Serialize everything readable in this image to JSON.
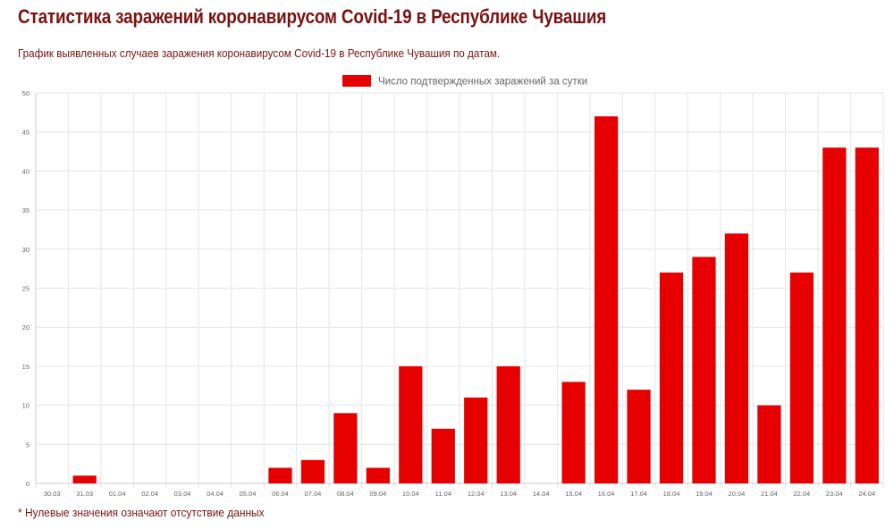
{
  "page": {
    "title": "Статистика заражений коронавирусом Covid-19 в Республике Чувашия",
    "subtitle": "График выявленных случаев заражения коронавирусом Covid-19 в Республике Чувашия по датам.",
    "footnote": "* Нулевые значения означают отсутствие данных"
  },
  "colors": {
    "bar": "#e60000",
    "title": "#7a1212",
    "grid": "#e6e6e6",
    "axis_text": "#666666"
  },
  "chart_data": {
    "type": "bar",
    "title": "",
    "xlabel": "",
    "ylabel": "",
    "ylim": [
      0,
      50
    ],
    "yticks": [
      0,
      5,
      10,
      15,
      20,
      25,
      30,
      35,
      40,
      45,
      50
    ],
    "grid": true,
    "legend_position": "top-center",
    "categories": [
      "30.03",
      "31.03",
      "01.04",
      "02.04",
      "03.04",
      "04.04",
      "05.04",
      "06.04",
      "07.04",
      "08.04",
      "09.04",
      "10.04",
      "11.04",
      "12.04",
      "13.04",
      "14.04",
      "15.04",
      "16.04",
      "17.04",
      "18.04",
      "19.04",
      "20.04",
      "21.04",
      "22.04",
      "23.04",
      "24.04"
    ],
    "series": [
      {
        "name": "Число подтвержденных заражений за сутки",
        "color": "#e60000",
        "values": [
          0,
          1,
          0,
          0,
          0,
          0,
          0,
          2,
          3,
          9,
          2,
          15,
          7,
          11,
          15,
          0,
          13,
          47,
          12,
          27,
          29,
          32,
          10,
          27,
          43,
          43
        ]
      }
    ]
  }
}
